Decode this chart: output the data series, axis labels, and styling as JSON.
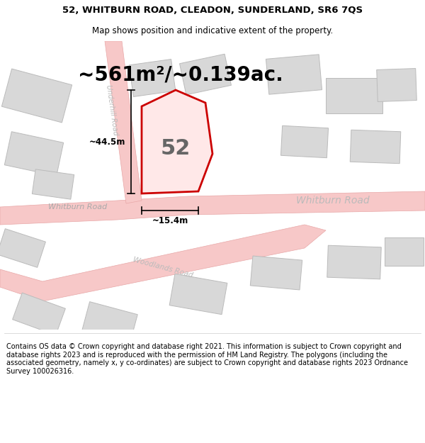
{
  "title_line1": "52, WHITBURN ROAD, CLEADON, SUNDERLAND, SR6 7QS",
  "title_line2": "Map shows position and indicative extent of the property.",
  "footer_text": "Contains OS data © Crown copyright and database right 2021. This information is subject to Crown copyright and database rights 2023 and is reproduced with the permission of HM Land Registry. The polygons (including the associated geometry, namely x, y co-ordinates) are subject to Crown copyright and database rights 2023 Ordnance Survey 100026316.",
  "map_bg_color": "#ffffff",
  "road_color": "#f7c8c8",
  "road_border_color": "#e8a8a8",
  "building_color": "#d8d8d8",
  "building_border_color": "#bbbbbb",
  "highlight_color": "#cc0000",
  "area_text": "~561m²/~0.139ac.",
  "number_label": "52",
  "dim_height": "~44.5m",
  "dim_width": "~15.4m",
  "road_label_whitburn_left": "Whitburn Road",
  "road_label_whitburn_right": "Whitburn Road",
  "road_label_underhill": "Underhill Road",
  "road_label_woodlands": "Woodlands Road",
  "title_fontsize": 9.5,
  "subtitle_fontsize": 8.5,
  "footer_fontsize": 7.0,
  "area_fontsize": 20,
  "number_fontsize": 22,
  "dim_fontsize": 8.5
}
